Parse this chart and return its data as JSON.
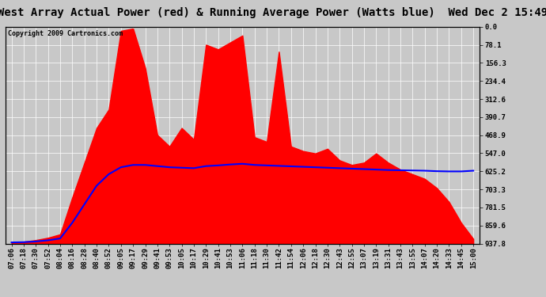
{
  "title": "West Array Actual Power (red) & Running Average Power (Watts blue)  Wed Dec 2 15:49",
  "copyright": "Copyright 2009 Cartronics.com",
  "ylabel_right": [
    "937.8",
    "859.6",
    "781.5",
    "703.3",
    "625.2",
    "547.0",
    "468.9",
    "390.7",
    "312.6",
    "234.4",
    "156.3",
    "78.1",
    "0.0"
  ],
  "ymax": 937.8,
  "ymin": 0.0,
  "yticks": [
    0.0,
    78.1,
    156.3,
    234.4,
    312.6,
    390.7,
    468.9,
    547.0,
    625.2,
    703.3,
    781.5,
    859.6,
    937.8
  ],
  "bg_color": "#c8c8c8",
  "plot_bg_color": "#c8c8c8",
  "bar_color": "#ff0000",
  "line_color": "#0000ff",
  "grid_color": "#ffffff",
  "title_bg": "#ffffff",
  "x_labels": [
    "07:06",
    "07:18",
    "07:30",
    "07:52",
    "08:04",
    "08:16",
    "08:28",
    "08:40",
    "08:52",
    "09:05",
    "09:17",
    "09:29",
    "09:41",
    "09:53",
    "10:05",
    "10:17",
    "10:29",
    "10:41",
    "10:53",
    "11:06",
    "11:18",
    "11:30",
    "11:42",
    "11:54",
    "12:06",
    "12:18",
    "12:30",
    "12:43",
    "12:55",
    "13:07",
    "13:19",
    "13:31",
    "13:43",
    "13:55",
    "14:07",
    "14:20",
    "14:33",
    "14:45",
    "15:00"
  ],
  "actual_power": [
    5,
    8,
    15,
    25,
    40,
    200,
    350,
    500,
    580,
    920,
    930,
    760,
    470,
    420,
    500,
    450,
    860,
    840,
    870,
    900,
    460,
    440,
    830,
    420,
    400,
    390,
    410,
    360,
    340,
    350,
    390,
    350,
    320,
    300,
    280,
    240,
    180,
    90,
    20
  ],
  "running_avg": [
    5,
    6,
    9,
    14,
    22,
    90,
    170,
    250,
    300,
    330,
    340,
    340,
    335,
    330,
    328,
    326,
    335,
    338,
    342,
    345,
    340,
    338,
    336,
    334,
    332,
    330,
    328,
    326,
    324,
    322,
    320,
    318,
    317,
    316,
    315,
    313,
    312,
    312,
    315
  ],
  "title_fontsize": 10,
  "tick_fontsize": 6.5,
  "copyright_fontsize": 6
}
